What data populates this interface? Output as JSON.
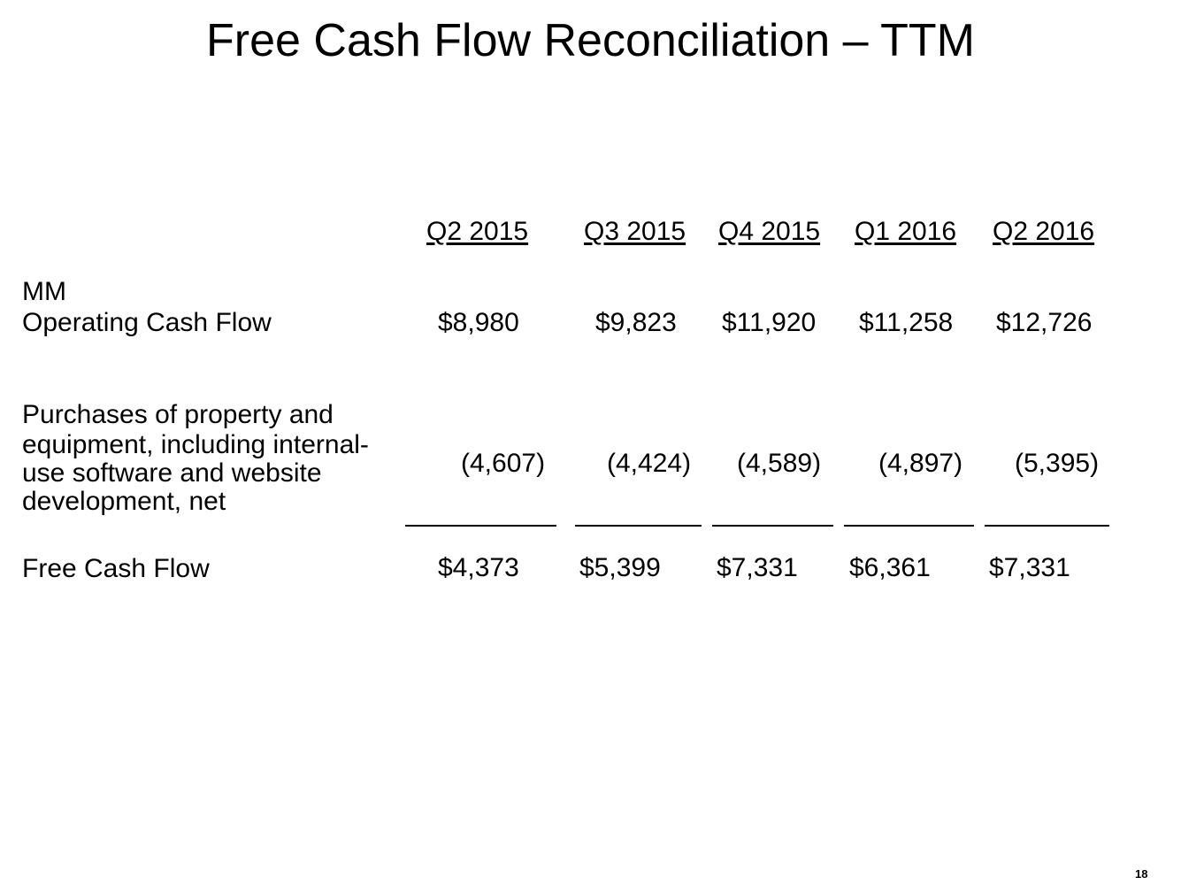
{
  "slide": {
    "title": "Free Cash Flow Reconciliation – TTM",
    "page_number": "18"
  },
  "table": {
    "columns": [
      "Q2 2015",
      "Q3 2015",
      "Q4 2015",
      "Q1 2016",
      "Q2 2016"
    ],
    "unit_label": "MM",
    "rows": {
      "operating_cash_flow": {
        "label": "Operating Cash Flow",
        "values": [
          "$8,980",
          "$9,823",
          "$11,920",
          "$11,258",
          "$12,726"
        ]
      },
      "purchases": {
        "label_lines": [
          "Purchases of property and",
          "equipment, including internal-",
          "use software and website",
          "development, net"
        ],
        "values": [
          "(4,607)",
          "(4,424)",
          "(4,589)",
          "(4,897)",
          "(5,395)"
        ]
      },
      "free_cash_flow": {
        "label": "Free Cash Flow",
        "values": [
          "$4,373",
          "$5,399",
          "$7,331",
          "$6,361",
          "$7,331"
        ]
      }
    }
  }
}
